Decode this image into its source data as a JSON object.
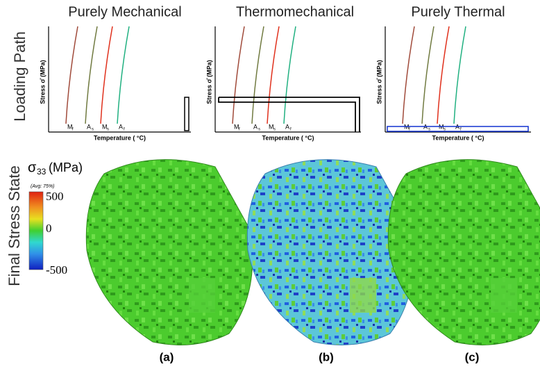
{
  "row_labels": {
    "top": "Loading Path",
    "bottom": "Final Stress State"
  },
  "panels": [
    {
      "title": "Purely Mechanical",
      "y_label": "Stress σ̄ (MPa)",
      "x_label": "Temperature ( °C)",
      "caption": "(a)",
      "curve_labels": [
        {
          "main": "M",
          "sub": "f"
        },
        {
          "main": "A",
          "sub": "s"
        },
        {
          "main": "M",
          "sub": "s"
        },
        {
          "main": "A",
          "sub": "f"
        }
      ]
    },
    {
      "title": "Thermomechanical",
      "y_label": "Stress σ̄ (MPa)",
      "x_label": "Temperature ( °C)",
      "caption": "(b)",
      "curve_labels": [
        {
          "main": "M",
          "sub": "f"
        },
        {
          "main": "A",
          "sub": "s"
        },
        {
          "main": "M",
          "sub": "s"
        },
        {
          "main": "A",
          "sub": "f"
        }
      ]
    },
    {
      "title": "Purely Thermal",
      "y_label": "Stress σ̄ (MPa)",
      "x_label": "Temperature ( °C)",
      "caption": "(c)",
      "curve_labels": [
        {
          "main": "M",
          "sub": "f"
        },
        {
          "main": "A",
          "sub": "s"
        },
        {
          "main": "M",
          "sub": "s"
        },
        {
          "main": "A",
          "sub": "f"
        }
      ]
    }
  ],
  "legend": {
    "symbol": "σ",
    "sub": "33",
    "unit": "(MPa)",
    "note": "(Avg: 75%)",
    "labels": [
      "500",
      "0",
      "-500"
    ]
  }
}
